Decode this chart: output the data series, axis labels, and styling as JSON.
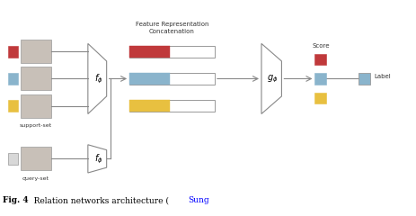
{
  "bg_color": "#ffffff",
  "support_label": "support-set",
  "query_label": "query-set",
  "score_label": "Score",
  "label_label": "Label",
  "feat_rep_label": "Feature Representation\nConcatenation",
  "fe_label": "$f_\\phi$",
  "ge_label": "$g_\\phi$",
  "fig_caption_bold": "Fig. 4",
  "fig_caption_normal": "   Relation networks architecture (",
  "fig_caption_blue": "Sung",
  "colors": {
    "red": "#C0393B",
    "blue": "#8AB4CC",
    "yellow": "#E8C040",
    "light_gray": "#D8D8D8",
    "img_gray": "#C8C0B8",
    "white": "#FFFFFF",
    "line": "#888888",
    "border": "#999999"
  },
  "xlim": [
    0,
    10
  ],
  "ylim": [
    0,
    5.5
  ]
}
